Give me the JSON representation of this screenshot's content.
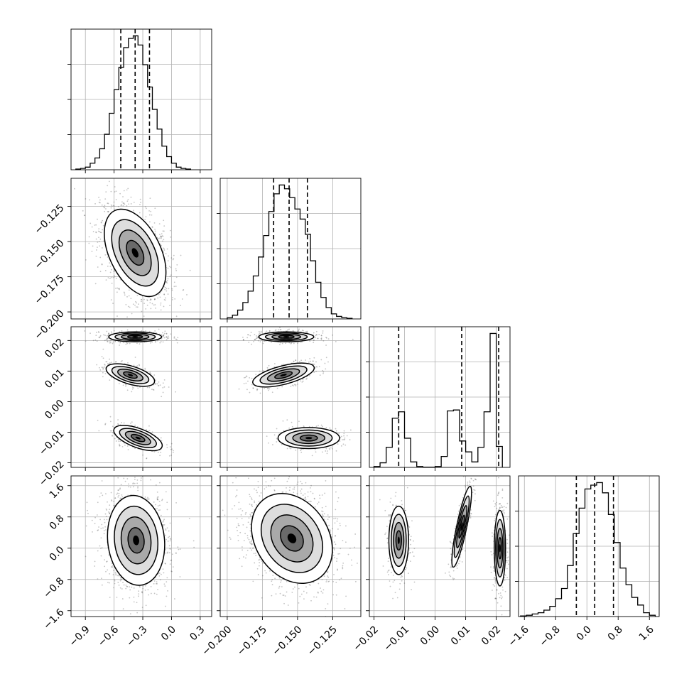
{
  "chart_data": {
    "type": "corner",
    "grid": true,
    "parameters": [
      {
        "index": 0,
        "range": [
          -1.05,
          0.42
        ],
        "ticks": [
          -0.9,
          -0.6,
          -0.3,
          0.0,
          0.3
        ],
        "tick_labels": [
          "−0.9",
          "−0.6",
          "−0.3",
          "0.0",
          "0.3"
        ]
      },
      {
        "index": 1,
        "range": [
          -0.205,
          -0.105
        ],
        "ticks": [
          -0.2,
          -0.175,
          -0.15,
          -0.125
        ],
        "tick_labels": [
          "−0.200",
          "−0.175",
          "−0.150",
          "−0.125"
        ]
      },
      {
        "index": 2,
        "range": [
          -0.0215,
          0.0245
        ],
        "ticks": [
          -0.02,
          -0.01,
          0.0,
          0.01,
          0.02
        ],
        "tick_labels": [
          "−0.02",
          "−0.01",
          "0.00",
          "0.01",
          "0.02"
        ]
      },
      {
        "index": 3,
        "range": [
          -1.75,
          1.85
        ],
        "ticks": [
          -1.6,
          -0.8,
          0.0,
          0.8,
          1.6
        ],
        "tick_labels": [
          "−1.6",
          "−0.8",
          "0.0",
          "0.8",
          "1.6"
        ]
      }
    ],
    "histograms": [
      {
        "param": 0,
        "quantiles": [
          -0.53,
          -0.38,
          -0.23
        ],
        "edges": [
          -1.0,
          -0.95,
          -0.9,
          -0.85,
          -0.8,
          -0.75,
          -0.7,
          -0.65,
          -0.6,
          -0.55,
          -0.5,
          -0.45,
          -0.4,
          -0.35,
          -0.3,
          -0.25,
          -0.2,
          -0.15,
          -0.1,
          -0.05,
          0.0,
          0.05,
          0.1,
          0.15,
          0.2
        ],
        "counts": [
          0.5,
          1,
          2,
          5,
          9,
          16,
          27,
          43,
          61,
          78,
          93,
          100,
          102,
          95,
          80,
          63,
          46,
          31,
          18,
          10,
          5,
          2,
          1,
          0.5
        ]
      },
      {
        "param": 1,
        "quantiles": [
          -0.167,
          -0.156,
          -0.143
        ],
        "edges": [
          -0.2,
          -0.1963,
          -0.1926,
          -0.1889,
          -0.1852,
          -0.1815,
          -0.1778,
          -0.1741,
          -0.1704,
          -0.1667,
          -0.163,
          -0.1593,
          -0.1556,
          -0.1519,
          -0.1482,
          -0.1445,
          -0.1408,
          -0.1371,
          -0.1334,
          -0.1297,
          -0.126,
          -0.1223,
          -0.1186,
          -0.1149,
          -0.1112
        ],
        "counts": [
          1,
          3,
          7,
          13,
          22,
          34,
          49,
          66,
          85,
          99,
          106,
          103,
          96,
          87,
          79,
          67,
          46,
          29,
          17,
          9,
          4,
          2,
          1,
          0.5
        ]
      },
      {
        "param": 2,
        "quantiles": [
          -0.0119,
          0.0087,
          0.0208
        ],
        "edges": [
          -0.02,
          -0.018,
          -0.016,
          -0.014,
          -0.012,
          -0.01,
          -0.008,
          -0.006,
          -0.004,
          -0.002,
          0.0,
          0.002,
          0.004,
          0.006,
          0.008,
          0.01,
          0.012,
          0.014,
          0.016,
          0.018,
          0.02,
          0.022
        ],
        "counts": [
          1,
          5,
          22,
          54,
          61,
          32,
          6,
          1,
          0.3,
          0.3,
          1,
          12,
          62,
          63,
          29,
          17,
          6,
          22,
          61,
          147,
          23
        ]
      },
      {
        "param": 3,
        "quantiles": [
          -0.27,
          0.2,
          0.68
        ],
        "edges": [
          -1.7,
          -1.55,
          -1.4,
          -1.25,
          -1.1,
          -0.95,
          -0.8,
          -0.65,
          -0.5,
          -0.35,
          -0.2,
          -0.05,
          0.1,
          0.25,
          0.4,
          0.55,
          0.7,
          0.85,
          1.0,
          1.15,
          1.3,
          1.45,
          1.6,
          1.75
        ],
        "counts": [
          0.5,
          1,
          2,
          3,
          5,
          8,
          14,
          22,
          40,
          65,
          85,
          100,
          103,
          105,
          97,
          80,
          58,
          38,
          25,
          15,
          9,
          3,
          1
        ]
      }
    ],
    "joint_panels": [
      {
        "x_param": 0,
        "y_param": 1,
        "clusters": [
          {
            "cx": -0.38,
            "cy": -0.158,
            "sx": 0.14,
            "sy": 0.0135,
            "rho": -0.45,
            "weight": 1.0
          }
        ]
      },
      {
        "x_param": 0,
        "y_param": 2,
        "clusters": [
          {
            "cx": -0.38,
            "cy": 0.0212,
            "sx": 0.12,
            "sy": 0.0007,
            "rho": 0.0,
            "weight": 0.45
          },
          {
            "cx": -0.43,
            "cy": 0.0087,
            "sx": 0.11,
            "sy": 0.0016,
            "rho": -0.55,
            "weight": 0.3
          },
          {
            "cx": -0.35,
            "cy": -0.0119,
            "sx": 0.11,
            "sy": 0.0018,
            "rho": -0.6,
            "weight": 0.25
          }
        ]
      },
      {
        "x_param": 1,
        "y_param": 2,
        "clusters": [
          {
            "cx": -0.158,
            "cy": 0.0212,
            "sx": 0.0085,
            "sy": 0.0007,
            "rho": 0.0,
            "weight": 0.45
          },
          {
            "cx": -0.16,
            "cy": 0.0087,
            "sx": 0.0095,
            "sy": 0.0017,
            "rho": 0.6,
            "weight": 0.3
          },
          {
            "cx": -0.142,
            "cy": -0.0119,
            "sx": 0.0095,
            "sy": 0.0015,
            "rho": 0.0,
            "weight": 0.25
          }
        ]
      },
      {
        "x_param": 0,
        "y_param": 3,
        "clusters": [
          {
            "cx": -0.37,
            "cy": 0.2,
            "sx": 0.13,
            "sy": 0.5,
            "rho": -0.1,
            "weight": 1.0
          }
        ]
      },
      {
        "x_param": 1,
        "y_param": 3,
        "clusters": [
          {
            "cx": -0.154,
            "cy": 0.25,
            "sx": 0.0125,
            "sy": 0.5,
            "rho": -0.25,
            "weight": 1.0
          }
        ]
      },
      {
        "x_param": 2,
        "y_param": 3,
        "clusters": [
          {
            "cx": -0.0119,
            "cy": 0.2,
            "sx": 0.0014,
            "sy": 0.38,
            "rho": 0.0,
            "weight": 0.3
          },
          {
            "cx": 0.0087,
            "cy": 0.55,
            "sx": 0.0014,
            "sy": 0.45,
            "rho": 0.85,
            "weight": 0.3
          },
          {
            "cx": 0.0212,
            "cy": 0.0,
            "sx": 0.0008,
            "sy": 0.42,
            "rho": 0.0,
            "weight": 0.4
          }
        ]
      }
    ],
    "colors": {
      "histogram_line": "#000000",
      "quantile_line": "#000000",
      "density_high": "#000000",
      "density_low": "#ffffff",
      "scatter_points": "#555555",
      "contour": "#000000",
      "grid": "#b0b0b0"
    }
  }
}
